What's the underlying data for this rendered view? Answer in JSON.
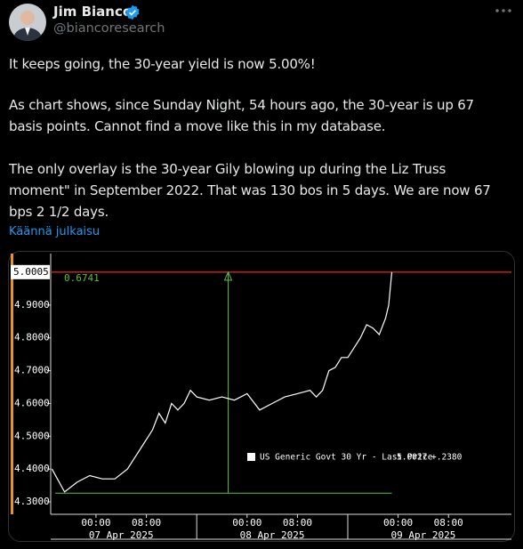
{
  "tweet": {
    "author": "Jim Bianco",
    "handle": "@biancoresearch",
    "paragraphs": [
      [
        "It keeps going, the 30-year yield is now 5.00%!"
      ],
      [
        "As chart shows, since Sunday Night, 54 hours ago, the 30-year is up 67",
        "basis points. Cannot find a move like this in my database."
      ],
      [
        "The only overlay is the 30-year Gily blowing up during the Liz Truss",
        "moment\" in September 2022. That was 130 bos in 5 days. We are now 67",
        "bps 2 1/2 days."
      ]
    ],
    "translate_link": "Käännä julkaisu"
  },
  "chart_data": {
    "type": "line",
    "x": [
      "2025-04-06 17:00",
      "2025-04-06 19:00",
      "2025-04-06 21:00",
      "2025-04-06 23:00",
      "2025-04-07 01:00",
      "2025-04-07 03:00",
      "2025-04-07 05:00",
      "2025-04-07 07:00",
      "2025-04-07 09:00",
      "2025-04-07 10:00",
      "2025-04-07 11:00",
      "2025-04-07 12:00",
      "2025-04-07 13:00",
      "2025-04-07 14:00",
      "2025-04-07 15:00",
      "2025-04-07 16:00",
      "2025-04-07 18:00",
      "2025-04-07 20:00",
      "2025-04-07 22:00",
      "2025-04-08 00:00",
      "2025-04-08 02:00",
      "2025-04-08 04:00",
      "2025-04-08 06:00",
      "2025-04-08 08:00",
      "2025-04-08 10:00",
      "2025-04-08 11:00",
      "2025-04-08 12:00",
      "2025-04-08 13:00",
      "2025-04-08 14:00",
      "2025-04-08 15:00",
      "2025-04-08 16:00",
      "2025-04-08 17:00",
      "2025-04-08 18:00",
      "2025-04-08 19:00",
      "2025-04-08 20:00",
      "2025-04-08 21:00",
      "2025-04-08 22:00",
      "2025-04-08 22:30",
      "2025-04-08 23:00"
    ],
    "series": [
      {
        "name": "US Generic Govt 30 Yr - Last Price",
        "color": "#ffffff",
        "values": [
          4.4,
          4.33,
          4.36,
          4.38,
          4.37,
          4.37,
          4.4,
          4.46,
          4.52,
          4.57,
          4.54,
          4.6,
          4.58,
          4.6,
          4.64,
          4.62,
          4.61,
          4.62,
          4.61,
          4.63,
          4.58,
          4.6,
          4.62,
          4.63,
          4.64,
          4.62,
          4.64,
          4.7,
          4.71,
          4.74,
          4.74,
          4.77,
          4.8,
          4.84,
          4.83,
          4.81,
          4.86,
          4.9,
          5.0005
        ],
        "last_price_label": "5.0027",
        "change_label": "+.2380"
      }
    ],
    "last_value": 5.0005,
    "last_value_color": "#d62020",
    "annotation": {
      "label": "0.6741",
      "x": "2025-04-07 21:00",
      "low": 4.3264,
      "high": 5.0005,
      "start": "2025-04-06 17:30",
      "end": "2025-04-08 23:00",
      "color": "#5fbf3a"
    },
    "xlim": [
      "2025-04-06 16:48",
      "2025-04-09 18:00"
    ],
    "xticks": [
      {
        "value": "2025-04-07 00:00",
        "label": "00:00"
      },
      {
        "value": "2025-04-07 08:00",
        "label": "08:00"
      },
      {
        "value": "2025-04-08 00:00",
        "label": "00:00"
      },
      {
        "value": "2025-04-08 08:00",
        "label": "08:00"
      },
      {
        "value": "2025-04-09 00:00",
        "label": "00:00"
      },
      {
        "value": "2025-04-09 08:00",
        "label": "08:00"
      }
    ],
    "x_date_labels": [
      "07 Apr 2025",
      "08 Apr 2025",
      "09 Apr 2025"
    ],
    "ylim": [
      4.262,
      5.057
    ],
    "yticks": [
      {
        "value": 4.3,
        "label": "4.3000"
      },
      {
        "value": 4.4,
        "label": "4.4000"
      },
      {
        "value": 4.5,
        "label": "4.5000"
      },
      {
        "value": 4.6,
        "label": "4.6000"
      },
      {
        "value": 4.7,
        "label": "4.7000"
      },
      {
        "value": 4.8,
        "label": "4.8000"
      },
      {
        "value": 4.9,
        "label": "4.9000"
      }
    ]
  }
}
